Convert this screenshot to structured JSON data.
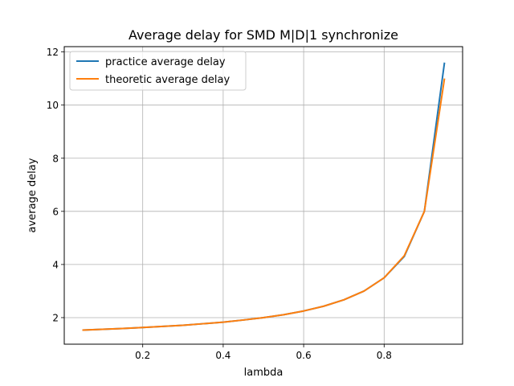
{
  "chart_data": {
    "type": "line",
    "title": "Average delay for SMD M|D|1 synchronize",
    "xlabel": "lambda",
    "ylabel": "average delay",
    "xlim": [
      0.005,
      0.995
    ],
    "ylim": [
      1.0,
      12.2
    ],
    "xticks": [
      0.2,
      0.4,
      0.6,
      0.8
    ],
    "xtick_labels": [
      "0.2",
      "0.4",
      "0.6",
      "0.8"
    ],
    "yticks": [
      2,
      4,
      6,
      8,
      10,
      12
    ],
    "ytick_labels": [
      "2",
      "4",
      "6",
      "8",
      "10",
      "12"
    ],
    "grid": true,
    "legend_position": "top-left",
    "x": [
      0.05,
      0.1,
      0.15,
      0.2,
      0.25,
      0.3,
      0.35,
      0.4,
      0.45,
      0.5,
      0.55,
      0.6,
      0.65,
      0.7,
      0.75,
      0.8,
      0.85,
      0.9,
      0.95
    ],
    "series": [
      {
        "name": "practice average delay",
        "color": "#1f77b4",
        "values": [
          1.53,
          1.56,
          1.59,
          1.63,
          1.67,
          1.71,
          1.77,
          1.83,
          1.91,
          2.0,
          2.11,
          2.25,
          2.43,
          2.67,
          3.0,
          3.5,
          4.3,
          6.0,
          11.6
        ]
      },
      {
        "name": "theoretic average delay",
        "color": "#ff7f0e",
        "values": [
          1.53,
          1.56,
          1.59,
          1.63,
          1.67,
          1.71,
          1.77,
          1.83,
          1.91,
          2.0,
          2.11,
          2.25,
          2.43,
          2.67,
          3.0,
          3.5,
          4.33,
          6.0,
          11.0
        ]
      }
    ]
  }
}
